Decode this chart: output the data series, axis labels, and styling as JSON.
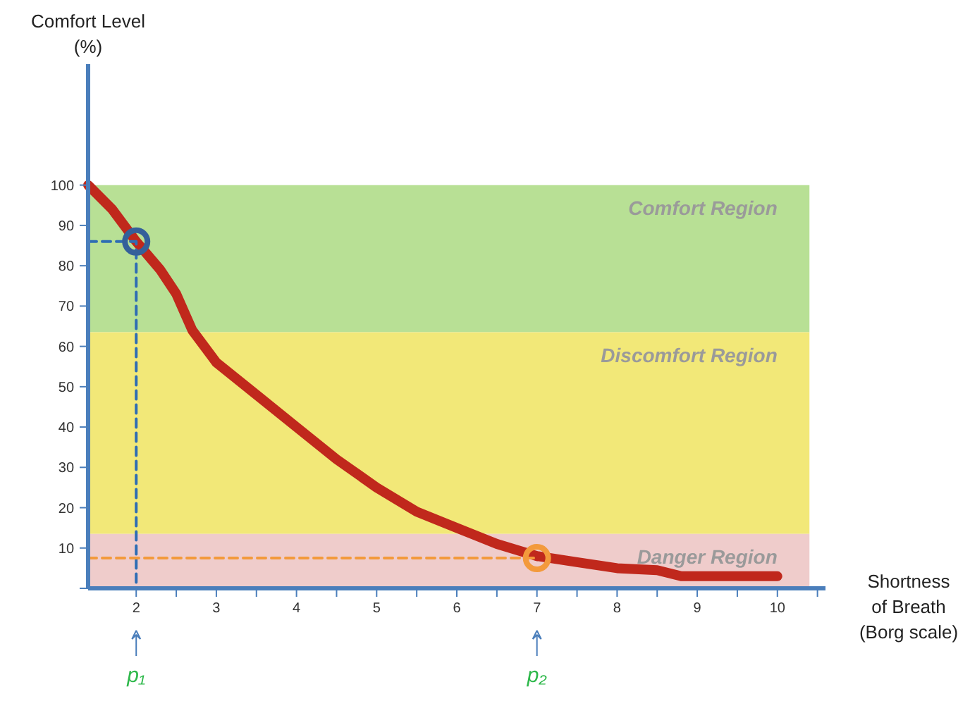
{
  "chart_data": {
    "type": "line",
    "xlabel": "Shortness\nof Breath\n(Borg scale)",
    "ylabel": "Comfort Level\n(%)",
    "xlim": [
      1.4,
      10.6
    ],
    "ylim": [
      0,
      130
    ],
    "xticks": [
      2,
      {
        "value": 2.5,
        "label": null
      },
      3,
      {
        "value": 3.5,
        "label": null
      },
      4,
      {
        "value": 4.5,
        "label": null
      },
      5,
      {
        "value": 5.5,
        "label": null
      },
      6,
      {
        "value": 6.5,
        "label": null
      },
      7,
      {
        "value": 7.5,
        "label": null
      },
      8,
      {
        "value": 8.5,
        "label": null
      },
      9,
      {
        "value": 9.5,
        "label": null
      },
      10,
      {
        "value": 10.5,
        "label": null
      }
    ],
    "yticks": [
      {
        "value": 0,
        "label": null
      },
      10,
      20,
      30,
      40,
      50,
      60,
      70,
      80,
      90,
      100
    ],
    "grid": false,
    "series": [
      {
        "color": "#c0281c",
        "x": [
          1.4,
          1.7,
          2.0,
          2.3,
          2.5,
          2.7,
          3.0,
          3.5,
          4.0,
          4.5,
          5.0,
          5.5,
          6.0,
          6.5,
          7.0,
          7.5,
          8.0,
          8.5,
          8.8,
          9.0,
          10.0
        ],
        "values": [
          100,
          94,
          86,
          79,
          73,
          64,
          56,
          48,
          40,
          32,
          25,
          19,
          15,
          11,
          8,
          6.5,
          5,
          4.5,
          3,
          3,
          3
        ]
      },
      {
        "color": "#2e6db4",
        "line_style": "dashed",
        "marker": "none",
        "x": [
          1.4,
          2,
          2
        ],
        "values": [
          86,
          86,
          0
        ]
      },
      {
        "color": "#f39a3c",
        "line_style": "dashed",
        "marker": "none",
        "x": [
          1.4,
          7
        ],
        "values": [
          7.5,
          7.5
        ]
      },
      {
        "type": "scatter",
        "marker": "circle",
        "color": "#34609a",
        "x": [
          2
        ],
        "values": [
          86
        ]
      },
      {
        "type": "scatter",
        "marker": "circle",
        "color": "#f39a3c",
        "x": [
          7
        ],
        "values": [
          7.5
        ]
      }
    ],
    "bands": [
      {
        "axis": "y",
        "from": 63.5,
        "to": 100,
        "label": "Comfort Region",
        "color": "#b8e095"
      },
      {
        "axis": "y",
        "from": 13.5,
        "to": 63.5,
        "label": "Discomfort Region",
        "color": "#f2e878"
      },
      {
        "axis": "y",
        "from": 0,
        "to": 13.5,
        "label": "Danger Region",
        "color": "#efcccb"
      }
    ],
    "annotations": [
      "p₁",
      "p₂"
    ]
  }
}
